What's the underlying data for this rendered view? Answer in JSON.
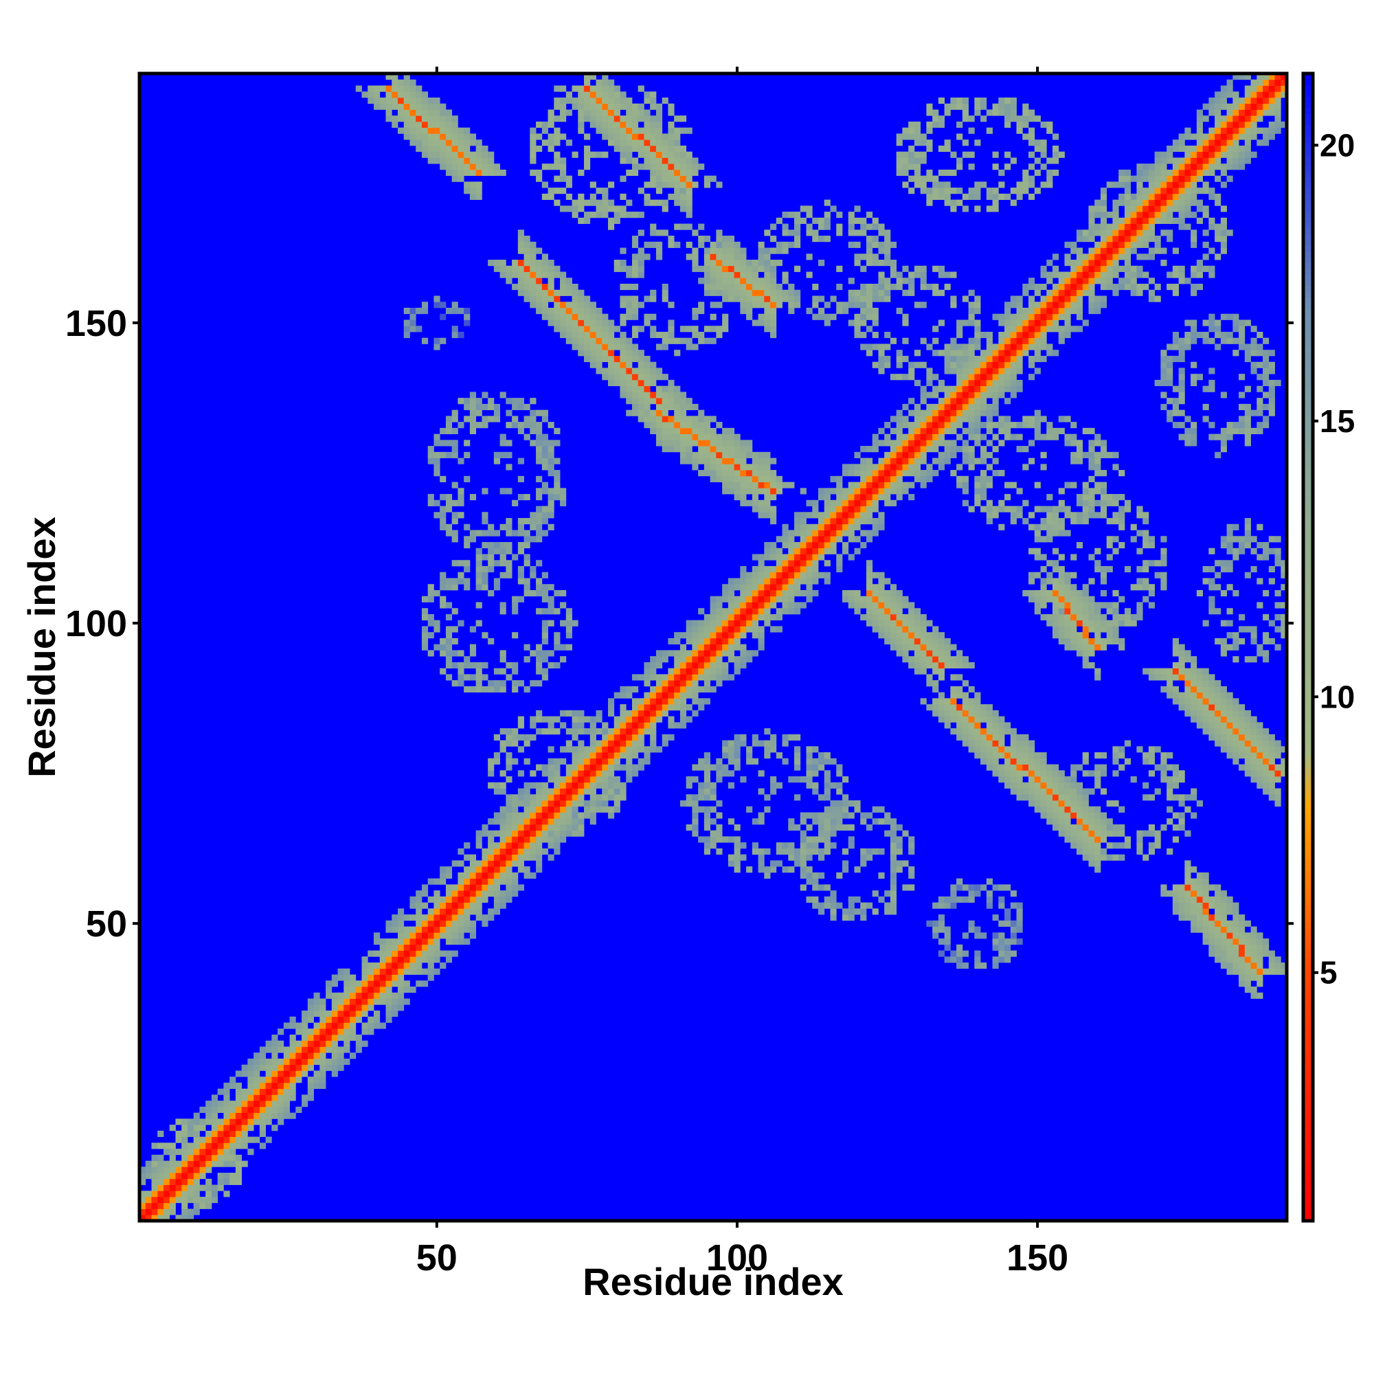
{
  "chart_data": {
    "type": "heatmap",
    "title": "",
    "xlabel": "Residue index",
    "ylabel": "Residue index",
    "n_residues": 191,
    "xlim": [
      1,
      191
    ],
    "ylim": [
      1,
      191
    ],
    "x_ticks": [
      {
        "value": 50,
        "label": "50"
      },
      {
        "value": 100,
        "label": "100"
      },
      {
        "value": 150,
        "label": "150"
      }
    ],
    "y_ticks": [
      {
        "value": 50,
        "label": "50"
      },
      {
        "value": 100,
        "label": "100"
      },
      {
        "value": 150,
        "label": "150"
      }
    ],
    "colorbar": {
      "range": [
        0.5,
        21.3
      ],
      "ticks": [
        {
          "value": 5,
          "label": "5"
        },
        {
          "value": 10,
          "label": "10"
        },
        {
          "value": 15,
          "label": "15"
        },
        {
          "value": 20,
          "label": "20"
        }
      ],
      "stops": [
        {
          "value": 0.5,
          "color": "#ff0000"
        },
        {
          "value": 5.0,
          "color": "#ff4500"
        },
        {
          "value": 8.0,
          "color": "#ffa500"
        },
        {
          "value": 9.0,
          "color": "#a3b886"
        },
        {
          "value": 13.0,
          "color": "#93ad8f"
        },
        {
          "value": 17.0,
          "color": "#6f8fb0"
        },
        {
          "value": 21.3,
          "color": "#0000ff"
        }
      ]
    },
    "background_value": 21.3,
    "grid": false,
    "legend": "right colorbar",
    "main_diagonal": {
      "from": 1,
      "to": 191,
      "value": 1.0
    },
    "contact_bands": [
      {
        "x": [
          42,
          57
        ],
        "y": [
          189,
          175
        ],
        "value": 6.5
      },
      {
        "x": [
          75,
          92
        ],
        "y": [
          189,
          173
        ],
        "value": 6.5
      },
      {
        "x": [
          64,
          87
        ],
        "y": [
          160,
          137
        ],
        "value": 6.5
      },
      {
        "x": [
          87,
          106
        ],
        "y": [
          135,
          122
        ],
        "value": 6.5
      },
      {
        "x": [
          96,
          106
        ],
        "y": [
          161,
          153
        ],
        "value": 6.5
      },
      {
        "x": [
          122,
          134
        ],
        "y": [
          105,
          93
        ],
        "value": 6.5
      },
      {
        "x": [
          136,
          160
        ],
        "y": [
          87,
          64
        ],
        "value": 6.5
      },
      {
        "x": [
          153,
          160
        ],
        "y": [
          105,
          96
        ],
        "value": 6.5
      },
      {
        "x": [
          173,
          190
        ],
        "y": [
          92,
          75
        ],
        "value": 6.5
      },
      {
        "x": [
          175,
          187
        ],
        "y": [
          56,
          42
        ],
        "value": 6.5
      }
    ],
    "contact_clusters": [
      {
        "x": 79,
        "y": 178,
        "rx": 14,
        "ry": 12,
        "value": 13
      },
      {
        "x": 90,
        "y": 156,
        "rx": 11,
        "ry": 11,
        "value": 14
      },
      {
        "x": 115,
        "y": 160,
        "rx": 12,
        "ry": 10,
        "value": 14
      },
      {
        "x": 140,
        "y": 178,
        "rx": 14,
        "ry": 10,
        "value": 13
      },
      {
        "x": 170,
        "y": 165,
        "rx": 12,
        "ry": 12,
        "value": 14
      },
      {
        "x": 130,
        "y": 150,
        "rx": 11,
        "ry": 10,
        "value": 14
      },
      {
        "x": 180,
        "y": 140,
        "rx": 10,
        "ry": 12,
        "value": 15
      },
      {
        "x": 60,
        "y": 125,
        "rx": 12,
        "ry": 14,
        "value": 15
      },
      {
        "x": 60,
        "y": 100,
        "rx": 13,
        "ry": 12,
        "value": 15
      },
      {
        "x": 70,
        "y": 75,
        "rx": 12,
        "ry": 11,
        "value": 14
      },
      {
        "x": 105,
        "y": 70,
        "rx": 14,
        "ry": 12,
        "value": 15
      },
      {
        "x": 120,
        "y": 60,
        "rx": 10,
        "ry": 10,
        "value": 15
      },
      {
        "x": 140,
        "y": 50,
        "rx": 8,
        "ry": 8,
        "value": 16
      },
      {
        "x": 160,
        "y": 110,
        "rx": 12,
        "ry": 12,
        "value": 14
      },
      {
        "x": 185,
        "y": 105,
        "rx": 8,
        "ry": 12,
        "value": 15
      },
      {
        "x": 150,
        "y": 125,
        "rx": 14,
        "ry": 10,
        "value": 14
      },
      {
        "x": 165,
        "y": 70,
        "rx": 12,
        "ry": 10,
        "value": 14
      },
      {
        "x": 50,
        "y": 150,
        "rx": 6,
        "ry": 4,
        "value": 17
      },
      {
        "x": 10,
        "y": 10,
        "rx": 8,
        "ry": 8,
        "value": 13
      }
    ]
  }
}
